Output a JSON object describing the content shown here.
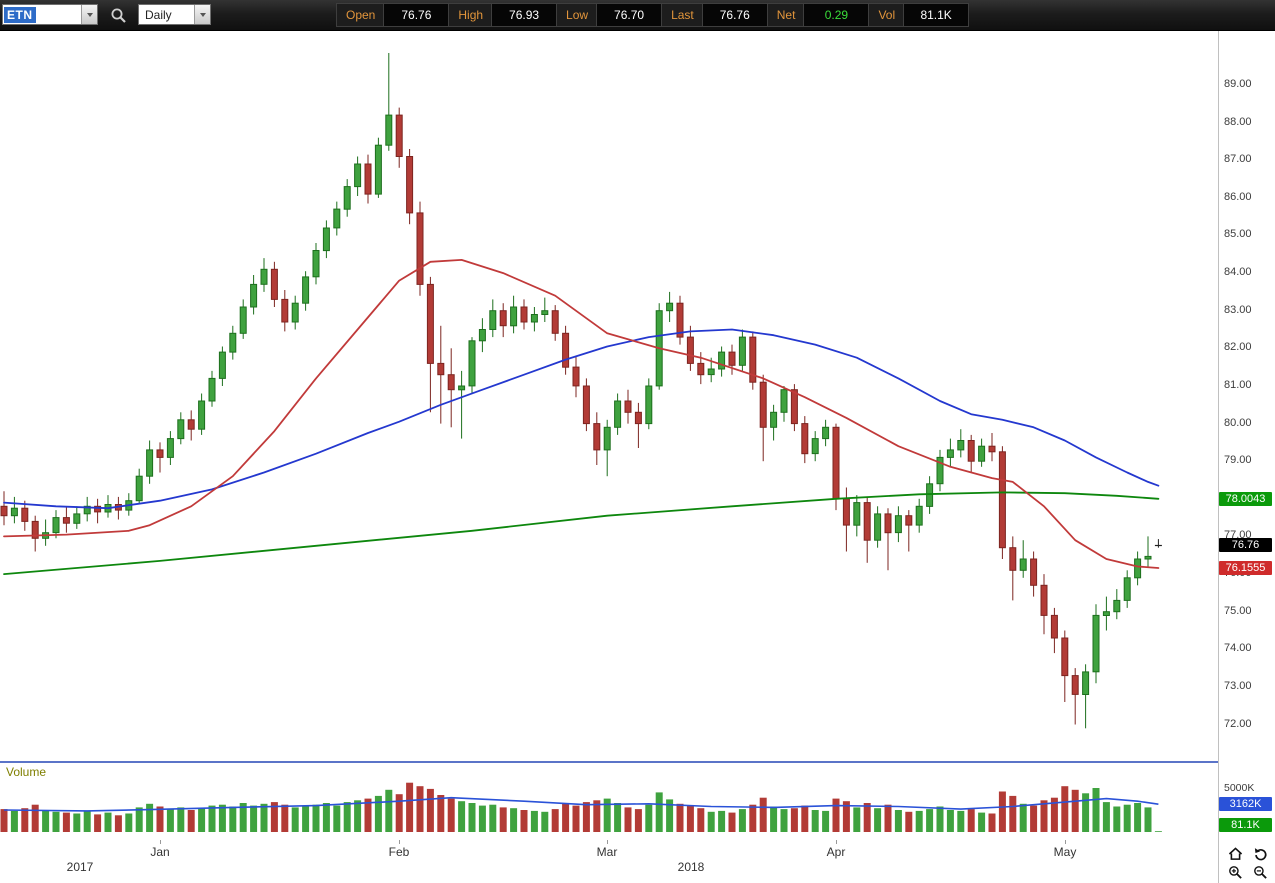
{
  "toolbar": {
    "symbol": "ETN",
    "period": "Daily",
    "fields": [
      {
        "label": "Open",
        "value": "76.76"
      },
      {
        "label": "High",
        "value": "76.93"
      },
      {
        "label": "Low",
        "value": "76.70"
      },
      {
        "label": "Last",
        "value": "76.76"
      },
      {
        "label": "Net",
        "value": "0.29",
        "value_color": "#3ade3a"
      },
      {
        "label": "Vol",
        "value": "81.1K"
      }
    ]
  },
  "colors": {
    "up": "#3fa23f",
    "up_stroke": "#1d6f1d",
    "down": "#b23b36",
    "down_stroke": "#7c2420",
    "doji": "#222222",
    "vol_ma": "#2a52d8",
    "splitter": "#5b74c8",
    "badge_green": "#0b9a0b",
    "badge_black": "#000000",
    "badge_red": "#cf2b2b",
    "badge_blue": "#2a52d8"
  },
  "price_axis": {
    "max": 89,
    "min": 72,
    "labels": [
      "89.00",
      "88.00",
      "87.00",
      "86.00",
      "85.00",
      "84.00",
      "83.00",
      "82.00",
      "81.00",
      "80.00",
      "79.00",
      "78.00",
      "77.00",
      "76.00",
      "75.00",
      "74.00",
      "73.00",
      "72.00"
    ]
  },
  "price_badges": [
    {
      "name": "green-ma-value-badge",
      "text": "78.0043",
      "price": 78.0043,
      "bg": "#0b9a0b"
    },
    {
      "name": "last-price-badge",
      "text": "76.76",
      "price": 76.76,
      "bg": "#000000"
    },
    {
      "name": "red-ma-value-badge",
      "text": "76.1555",
      "price": 76.1555,
      "bg": "#cf2b2b"
    }
  ],
  "volume_pane": {
    "label": "Volume",
    "scale_label": {
      "text": "5000K",
      "value": 5000
    },
    "badges": [
      {
        "name": "volume-ma-badge",
        "text": "3162K",
        "value": 3162,
        "bg": "#2a52d8"
      },
      {
        "name": "last-volume-badge",
        "text": "81.1K",
        "value": 81,
        "bg": "#0b9a0b"
      }
    ]
  },
  "time_axis": {
    "months": [
      {
        "label": "Jan",
        "idx": 15
      },
      {
        "label": "Feb",
        "idx": 38
      },
      {
        "label": "Mar",
        "idx": 58
      },
      {
        "label": "Apr",
        "idx": 80
      },
      {
        "label": "May",
        "idx": 102
      }
    ],
    "years": [
      {
        "label": "2017",
        "x": 80
      },
      {
        "label": "2018",
        "x": 691
      }
    ]
  },
  "chart_data": {
    "type": "candlestick",
    "symbol": "ETN",
    "timeframe": "Daily",
    "x_range": "Dec 2017 - May 2018",
    "ylim": [
      72,
      89
    ],
    "candles": [
      [
        77.8,
        78.2,
        77.3,
        77.55,
        2600
      ],
      [
        77.55,
        78.05,
        77.35,
        77.75,
        2400
      ],
      [
        77.75,
        77.95,
        77.15,
        77.4,
        2700
      ],
      [
        77.4,
        77.55,
        76.6,
        76.95,
        3100
      ],
      [
        76.95,
        77.45,
        76.75,
        77.1,
        2500
      ],
      [
        77.1,
        77.7,
        76.95,
        77.5,
        2300
      ],
      [
        77.5,
        77.8,
        77.1,
        77.35,
        2200
      ],
      [
        77.35,
        77.8,
        77.2,
        77.6,
        2100
      ],
      [
        77.6,
        78.05,
        77.4,
        77.8,
        2400
      ],
      [
        77.8,
        78.0,
        77.35,
        77.65,
        2000
      ],
      [
        77.65,
        78.1,
        77.5,
        77.85,
        2200
      ],
      [
        77.85,
        78.05,
        77.45,
        77.7,
        1900
      ],
      [
        77.7,
        78.15,
        77.55,
        77.95,
        2100
      ],
      [
        77.95,
        78.8,
        77.85,
        78.6,
        2800
      ],
      [
        78.6,
        79.55,
        78.4,
        79.3,
        3200
      ],
      [
        79.3,
        79.5,
        78.7,
        79.1,
        2900
      ],
      [
        79.1,
        79.8,
        78.9,
        79.6,
        2600
      ],
      [
        79.6,
        80.3,
        79.45,
        80.1,
        2800
      ],
      [
        80.1,
        80.35,
        79.55,
        79.85,
        2500
      ],
      [
        79.85,
        80.8,
        79.7,
        80.6,
        2700
      ],
      [
        80.6,
        81.4,
        80.45,
        81.2,
        3000
      ],
      [
        81.2,
        82.05,
        81.0,
        81.9,
        3100
      ],
      [
        81.9,
        82.6,
        81.7,
        82.4,
        2900
      ],
      [
        82.4,
        83.3,
        82.25,
        83.1,
        3300
      ],
      [
        83.1,
        83.95,
        82.9,
        83.7,
        3000
      ],
      [
        83.7,
        84.4,
        83.5,
        84.1,
        3200
      ],
      [
        84.1,
        84.3,
        83.1,
        83.3,
        3400
      ],
      [
        83.3,
        83.55,
        82.45,
        82.7,
        3100
      ],
      [
        82.7,
        83.4,
        82.5,
        83.2,
        2800
      ],
      [
        83.2,
        84.05,
        83.0,
        83.9,
        2900
      ],
      [
        83.9,
        84.8,
        83.7,
        84.6,
        3100
      ],
      [
        84.6,
        85.4,
        84.4,
        85.2,
        3300
      ],
      [
        85.2,
        85.9,
        85.0,
        85.7,
        3000
      ],
      [
        85.7,
        86.5,
        85.5,
        86.3,
        3400
      ],
      [
        86.3,
        87.1,
        86.05,
        86.9,
        3600
      ],
      [
        86.9,
        87.15,
        85.85,
        86.1,
        3800
      ],
      [
        86.1,
        87.6,
        86.0,
        87.4,
        4100
      ],
      [
        87.4,
        89.85,
        87.25,
        88.2,
        4800
      ],
      [
        88.2,
        88.4,
        86.8,
        87.1,
        4300
      ],
      [
        87.1,
        87.3,
        85.3,
        85.6,
        5600
      ],
      [
        85.6,
        85.9,
        83.4,
        83.7,
        5200
      ],
      [
        83.7,
        83.9,
        80.3,
        81.6,
        4900
      ],
      [
        81.6,
        82.6,
        80.0,
        81.3,
        4200
      ],
      [
        81.3,
        82.0,
        79.9,
        80.9,
        3800
      ],
      [
        80.9,
        81.4,
        79.6,
        81.0,
        3500
      ],
      [
        81.0,
        82.3,
        80.8,
        82.2,
        3300
      ],
      [
        82.2,
        82.8,
        81.9,
        82.5,
        3000
      ],
      [
        82.5,
        83.3,
        82.3,
        83.0,
        3100
      ],
      [
        83.0,
        83.2,
        82.3,
        82.6,
        2800
      ],
      [
        82.6,
        83.4,
        82.4,
        83.1,
        2700
      ],
      [
        83.1,
        83.3,
        82.5,
        82.7,
        2500
      ],
      [
        82.7,
        83.1,
        82.45,
        82.9,
        2400
      ],
      [
        82.9,
        83.35,
        82.7,
        83.0,
        2300
      ],
      [
        83.0,
        83.15,
        82.2,
        82.4,
        2600
      ],
      [
        82.4,
        82.6,
        81.3,
        81.5,
        3200
      ],
      [
        81.5,
        81.8,
        80.7,
        81.0,
        3000
      ],
      [
        81.0,
        81.2,
        79.8,
        80.0,
        3400
      ],
      [
        80.0,
        80.3,
        78.9,
        79.3,
        3600
      ],
      [
        79.3,
        80.1,
        78.6,
        79.9,
        3800
      ],
      [
        79.9,
        80.8,
        79.7,
        80.6,
        3300
      ],
      [
        80.6,
        80.9,
        80.0,
        80.3,
        2800
      ],
      [
        80.3,
        80.55,
        79.35,
        80.0,
        2600
      ],
      [
        80.0,
        81.2,
        79.85,
        81.0,
        3100
      ],
      [
        81.0,
        83.2,
        80.9,
        83.0,
        4500
      ],
      [
        83.0,
        83.5,
        82.7,
        83.2,
        3700
      ],
      [
        83.2,
        83.4,
        82.1,
        82.3,
        3200
      ],
      [
        82.3,
        82.6,
        81.4,
        81.6,
        3000
      ],
      [
        81.6,
        81.9,
        81.05,
        81.3,
        2700
      ],
      [
        81.3,
        81.75,
        81.1,
        81.45,
        2300
      ],
      [
        81.45,
        82.05,
        81.25,
        81.9,
        2400
      ],
      [
        81.9,
        82.1,
        81.3,
        81.55,
        2200
      ],
      [
        81.55,
        82.5,
        81.4,
        82.3,
        2600
      ],
      [
        82.3,
        82.45,
        80.9,
        81.1,
        3100
      ],
      [
        81.1,
        81.3,
        79.0,
        79.9,
        3900
      ],
      [
        79.9,
        80.5,
        79.55,
        80.3,
        2900
      ],
      [
        80.3,
        81.0,
        80.05,
        80.9,
        2600
      ],
      [
        80.9,
        81.05,
        79.8,
        80.0,
        2700
      ],
      [
        80.0,
        80.2,
        78.95,
        79.2,
        3000
      ],
      [
        79.2,
        79.8,
        79.0,
        79.6,
        2500
      ],
      [
        79.6,
        80.1,
        79.4,
        79.9,
        2400
      ],
      [
        79.9,
        80.0,
        77.7,
        78.0,
        3800
      ],
      [
        78.0,
        78.3,
        76.6,
        77.3,
        3500
      ],
      [
        77.3,
        78.1,
        77.0,
        77.9,
        2800
      ],
      [
        77.9,
        78.05,
        76.3,
        76.9,
        3300
      ],
      [
        76.9,
        77.8,
        76.7,
        77.6,
        2700
      ],
      [
        77.6,
        77.75,
        76.1,
        77.1,
        3100
      ],
      [
        77.1,
        77.8,
        76.85,
        77.55,
        2500
      ],
      [
        77.55,
        77.7,
        76.6,
        77.3,
        2300
      ],
      [
        77.3,
        78.0,
        77.1,
        77.8,
        2400
      ],
      [
        77.8,
        78.6,
        77.6,
        78.4,
        2600
      ],
      [
        78.4,
        79.3,
        78.2,
        79.1,
        2900
      ],
      [
        79.1,
        79.6,
        78.85,
        79.3,
        2500
      ],
      [
        79.3,
        79.85,
        79.1,
        79.55,
        2400
      ],
      [
        79.55,
        79.7,
        78.7,
        79.0,
        2600
      ],
      [
        79.0,
        79.6,
        78.85,
        79.4,
        2200
      ],
      [
        79.4,
        79.75,
        79.0,
        79.25,
        2100
      ],
      [
        79.25,
        79.4,
        76.4,
        76.7,
        4600
      ],
      [
        76.7,
        77.0,
        75.3,
        76.1,
        4100
      ],
      [
        76.1,
        76.9,
        75.9,
        76.4,
        3200
      ],
      [
        76.4,
        76.6,
        75.4,
        75.7,
        3000
      ],
      [
        75.7,
        76.0,
        74.4,
        74.9,
        3600
      ],
      [
        74.9,
        75.1,
        73.9,
        74.3,
        3900
      ],
      [
        74.3,
        74.5,
        72.6,
        73.3,
        5200
      ],
      [
        73.3,
        73.5,
        72.0,
        72.8,
        4800
      ],
      [
        72.8,
        73.6,
        71.9,
        73.4,
        4400
      ],
      [
        73.4,
        75.2,
        73.1,
        74.9,
        5000
      ],
      [
        74.9,
        75.4,
        74.5,
        75.0,
        3400
      ],
      [
        75.0,
        75.6,
        74.8,
        75.3,
        2900
      ],
      [
        75.3,
        76.1,
        75.1,
        75.9,
        3100
      ],
      [
        75.9,
        76.6,
        75.7,
        76.4,
        3300
      ],
      [
        76.4,
        77.0,
        76.2,
        76.47,
        2800
      ],
      [
        76.76,
        76.93,
        76.7,
        76.76,
        81
      ]
    ],
    "overlays": [
      {
        "name": "green-ma-line",
        "color": "#0d870d",
        "points": [
          [
            0,
            76.0
          ],
          [
            15,
            76.35
          ],
          [
            30,
            76.75
          ],
          [
            45,
            77.15
          ],
          [
            58,
            77.55
          ],
          [
            70,
            77.8
          ],
          [
            80,
            78.0
          ],
          [
            88,
            78.12
          ],
          [
            96,
            78.17
          ],
          [
            102,
            78.15
          ],
          [
            107,
            78.08
          ],
          [
            111,
            78.0
          ]
        ]
      },
      {
        "name": "blue-ma-line",
        "color": "#2438cf",
        "points": [
          [
            0,
            77.9
          ],
          [
            5,
            77.8
          ],
          [
            10,
            77.75
          ],
          [
            15,
            77.95
          ],
          [
            20,
            78.25
          ],
          [
            25,
            78.7
          ],
          [
            30,
            79.2
          ],
          [
            35,
            79.75
          ],
          [
            38,
            80.05
          ],
          [
            42,
            80.5
          ],
          [
            46,
            80.9
          ],
          [
            50,
            81.3
          ],
          [
            54,
            81.7
          ],
          [
            58,
            82.05
          ],
          [
            62,
            82.3
          ],
          [
            66,
            82.45
          ],
          [
            70,
            82.5
          ],
          [
            74,
            82.35
          ],
          [
            78,
            82.1
          ],
          [
            82,
            81.75
          ],
          [
            86,
            81.2
          ],
          [
            90,
            80.6
          ],
          [
            93,
            80.25
          ],
          [
            96,
            80.1
          ],
          [
            99,
            79.9
          ],
          [
            102,
            79.55
          ],
          [
            105,
            79.1
          ],
          [
            108,
            78.7
          ],
          [
            110,
            78.45
          ],
          [
            111,
            78.35
          ]
        ]
      },
      {
        "name": "red-ma-line",
        "color": "#c13a3a",
        "points": [
          [
            0,
            77.0
          ],
          [
            6,
            77.05
          ],
          [
            12,
            77.15
          ],
          [
            14,
            77.3
          ],
          [
            18,
            77.8
          ],
          [
            22,
            78.6
          ],
          [
            26,
            79.8
          ],
          [
            30,
            81.2
          ],
          [
            34,
            82.5
          ],
          [
            38,
            83.8
          ],
          [
            41,
            84.3
          ],
          [
            44,
            84.35
          ],
          [
            48,
            84.0
          ],
          [
            53,
            83.4
          ],
          [
            58,
            82.4
          ],
          [
            63,
            82.0
          ],
          [
            67,
            81.75
          ],
          [
            73,
            81.2
          ],
          [
            77,
            80.7
          ],
          [
            81,
            80.15
          ],
          [
            86,
            79.4
          ],
          [
            91,
            78.85
          ],
          [
            95,
            78.55
          ],
          [
            97,
            78.45
          ],
          [
            100,
            77.8
          ],
          [
            103,
            76.9
          ],
          [
            106,
            76.4
          ],
          [
            109,
            76.2
          ],
          [
            111,
            76.16
          ]
        ]
      }
    ],
    "volume_ma": {
      "name": "volume-ma-line",
      "color": "#2a52d8",
      "points": [
        [
          0,
          2500
        ],
        [
          8,
          2400
        ],
        [
          14,
          2550
        ],
        [
          22,
          2800
        ],
        [
          30,
          3000
        ],
        [
          38,
          3500
        ],
        [
          43,
          3900
        ],
        [
          50,
          3500
        ],
        [
          56,
          3100
        ],
        [
          62,
          3200
        ],
        [
          68,
          2900
        ],
        [
          74,
          2800
        ],
        [
          80,
          3000
        ],
        [
          86,
          2900
        ],
        [
          92,
          2600
        ],
        [
          97,
          2900
        ],
        [
          102,
          3400
        ],
        [
          106,
          3800
        ],
        [
          109,
          3500
        ],
        [
          111,
          3162
        ]
      ]
    }
  }
}
